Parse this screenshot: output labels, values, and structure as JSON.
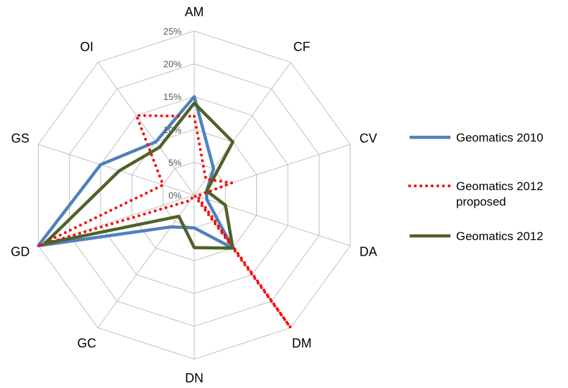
{
  "chart_data": {
    "type": "radar",
    "categories": [
      "AM",
      "CF",
      "CV",
      "DA",
      "DM",
      "DN",
      "GC",
      "GD",
      "GS",
      "OI"
    ],
    "r_ticks": [
      "0%",
      "5%",
      "10%",
      "15%",
      "20%",
      "25%"
    ],
    "r_max": 25,
    "grid": true,
    "legend_position": "right",
    "series": [
      {
        "name": "Geomatics 2010",
        "color": "#4f81bd",
        "style": "solid",
        "values": [
          15,
          5,
          2,
          2,
          10,
          5,
          6,
          25,
          15,
          10
        ]
      },
      {
        "name": "Geomatics 2012 proposed",
        "color": "#ff0000",
        "style": "dotted",
        "values": [
          12,
          3,
          6,
          0.5,
          25,
          0,
          1,
          25,
          5,
          15
        ]
      },
      {
        "name": "Geomatics 2012",
        "color": "#4f6228",
        "style": "solid",
        "values": [
          14,
          10,
          2,
          5,
          10,
          8,
          4,
          24,
          12,
          9
        ]
      }
    ]
  },
  "legend": {
    "items": [
      {
        "label_lines": [
          "Geomatics 2010"
        ],
        "color": "#4f81bd",
        "style": "solid"
      },
      {
        "label_lines": [
          "Geomatics 2012",
          "proposed"
        ],
        "color": "#ff0000",
        "style": "dotted"
      },
      {
        "label_lines": [
          "Geomatics 2012"
        ],
        "color": "#4f6228",
        "style": "solid"
      }
    ]
  }
}
